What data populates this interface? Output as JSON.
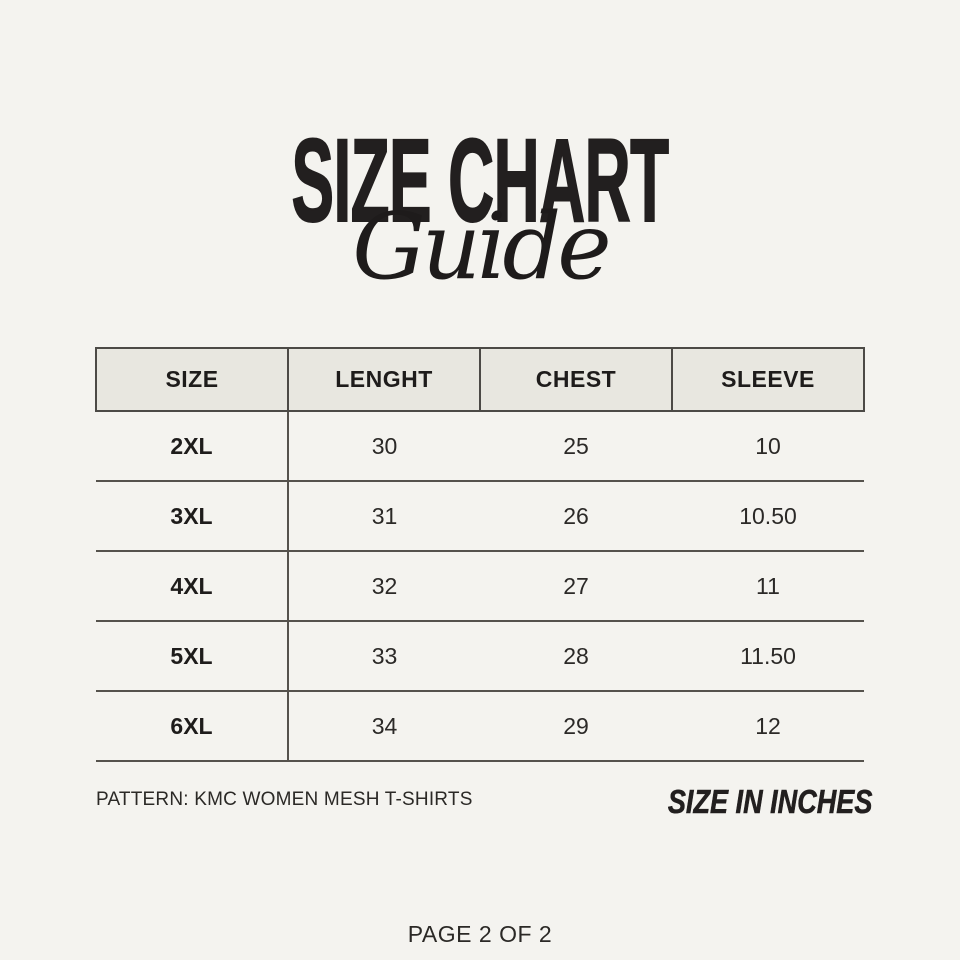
{
  "header": {
    "title": "SIZE CHART",
    "subtitle": "Guide"
  },
  "table": {
    "columns": [
      "SIZE",
      "LENGHT",
      "CHEST",
      "SLEEVE"
    ],
    "rows": [
      {
        "size": "2XL",
        "length": "30",
        "chest": "25",
        "sleeve": "10"
      },
      {
        "size": "3XL",
        "length": "31",
        "chest": "26",
        "sleeve": "10.50"
      },
      {
        "size": "4XL",
        "length": "32",
        "chest": "27",
        "sleeve": "11"
      },
      {
        "size": "5XL",
        "length": "33",
        "chest": "28",
        "sleeve": "11.50"
      },
      {
        "size": "6XL",
        "length": "34",
        "chest": "29",
        "sleeve": "12"
      }
    ]
  },
  "footer": {
    "pattern": "PATTERN: KMC WOMEN MESH T-SHIRTS",
    "units": "SIZE IN INCHES",
    "page": "PAGE 2 OF 2"
  },
  "colors": {
    "background": "#f4f3ef",
    "header_row_bg": "#e8e7e0",
    "table_line": "#55524d",
    "text": "#221f1f"
  },
  "chart_data": {
    "type": "table",
    "title": "SIZE CHART Guide",
    "columns": [
      "SIZE",
      "LENGHT",
      "CHEST",
      "SLEEVE"
    ],
    "rows": [
      [
        "2XL",
        30,
        25,
        10
      ],
      [
        "3XL",
        31,
        26,
        10.5
      ],
      [
        "4XL",
        32,
        27,
        11
      ],
      [
        "5XL",
        33,
        28,
        11.5
      ],
      [
        "6XL",
        34,
        29,
        12
      ]
    ],
    "units": "inches",
    "notes": [
      "PATTERN: KMC WOMEN MESH T-SHIRTS",
      "SIZE IN INCHES",
      "PAGE 2 OF 2"
    ]
  }
}
